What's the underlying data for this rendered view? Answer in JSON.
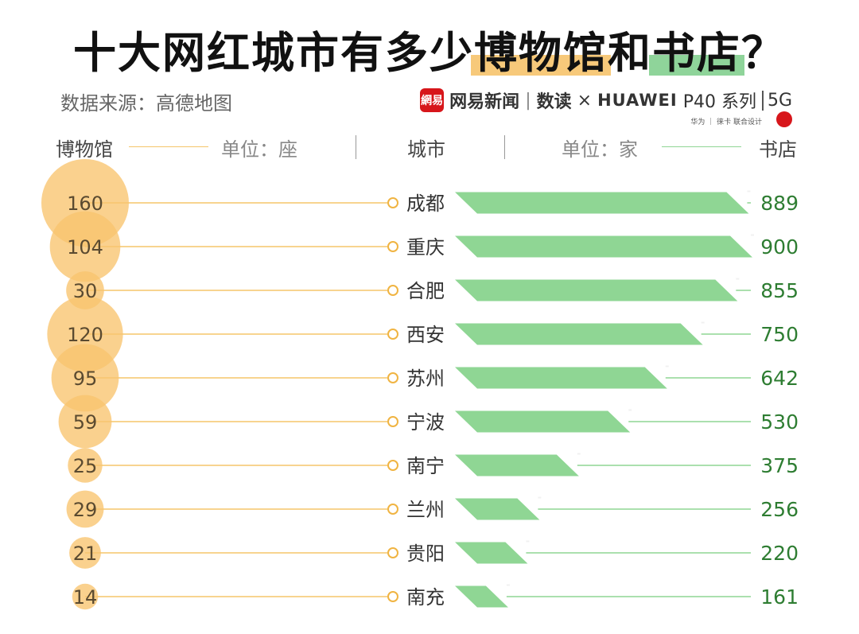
{
  "title": {
    "part1": "十大网红城市有多少",
    "part2": "博物馆",
    "part3": "和",
    "part4": "书店",
    "part5": "？"
  },
  "source": {
    "label": "数据来源：",
    "value": "高德地图"
  },
  "brand": {
    "logo_text": "網易",
    "netease": "网易新闻",
    "divider": "|",
    "shudu": "数读",
    "times": "×",
    "huawei": "HUAWEI",
    "p40": "P40 系列",
    "fiveg": "5G",
    "subline": "华为 ｜ 徕卡  联合设计"
  },
  "headers": {
    "museum": "博物馆",
    "museum_unit": "单位：座",
    "city": "城市",
    "store_unit": "单位：家",
    "store": "书店"
  },
  "colors": {
    "museum_circle": "#f9c46e",
    "museum_line": "#f5c56a",
    "bookstore_bar": "#8fd694",
    "bookstore_line": "#8fd694"
  },
  "chart_data": {
    "type": "bar",
    "categories": [
      "成都",
      "重庆",
      "合肥",
      "西安",
      "苏州",
      "宁波",
      "南宁",
      "兰州",
      "贵阳",
      "南充"
    ],
    "series": [
      {
        "name": "博物馆",
        "values": [
          160,
          104,
          30,
          120,
          95,
          59,
          25,
          29,
          21,
          14
        ]
      },
      {
        "name": "书店",
        "values": [
          889,
          900,
          855,
          750,
          642,
          530,
          375,
          256,
          220,
          161
        ]
      }
    ]
  }
}
